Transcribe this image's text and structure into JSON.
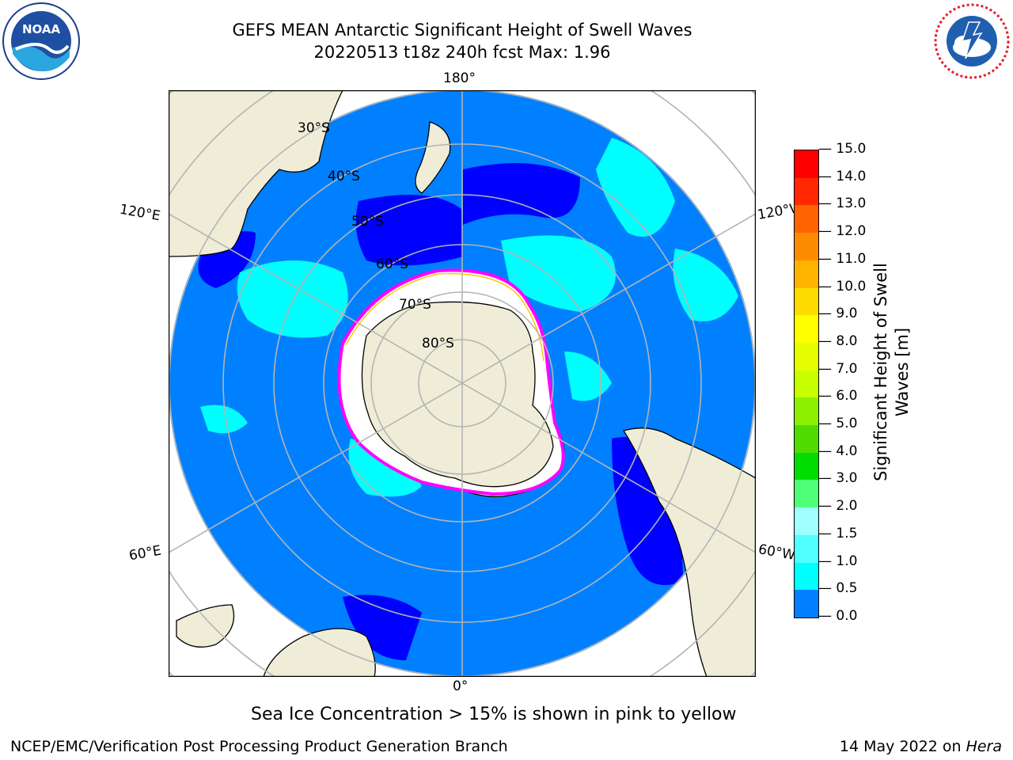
{
  "header": {
    "title_line1": "GEFS MEAN Antarctic Significant Height of Swell Waves",
    "title_line2": "20220513 t18z 240h fcst   Max: 1.96"
  },
  "logos": {
    "left": {
      "icon": "noaa-logo",
      "text": "NOAA",
      "ring_text": "NATIONAL OCEANIC AND ATMOSPHERIC ADMINISTRATION · U.S. DEPARTMENT OF COMMERCE"
    },
    "right": {
      "icon": "national-weather-service-logo",
      "ring_text": "NATIONAL WEATHER SERVICE"
    }
  },
  "map": {
    "projection": "south-polar-stereographic",
    "longitude_labels": {
      "top": "180°",
      "bottom": "0°",
      "upper_left": "120°E",
      "upper_right": "120°W",
      "lower_left": "60°E",
      "lower_right": "60°W"
    },
    "latitude_labels": [
      "30°S",
      "40°S",
      "50°S",
      "60°S",
      "70°S",
      "80°S"
    ],
    "colors": {
      "land": "#efedd8",
      "ocean_low": "#0080ff",
      "ocean_vlow": "#0000ff",
      "swell_mid": "#00ffff",
      "ice": "#ffffff",
      "ice_edge": "#ff00ff",
      "ice_edge2": "#ffc800",
      "grid": "#b4b4b4"
    }
  },
  "colorbar": {
    "label_line1": "Significant Height of Swell",
    "label_line2": "Waves [m]",
    "ticks": [
      "15.0",
      "14.0",
      "13.0",
      "12.0",
      "11.0",
      "10.0",
      "9.0",
      "8.0",
      "7.0",
      "6.0",
      "5.0",
      "4.0",
      "3.0",
      "2.0",
      "1.5",
      "1.0",
      "0.5",
      "0.0"
    ],
    "colors": [
      "#ff0000",
      "#ff2800",
      "#ff6400",
      "#ff8c00",
      "#ffb400",
      "#ffdc00",
      "#ffff00",
      "#e6ff00",
      "#c8ff00",
      "#8cf000",
      "#50dc00",
      "#00dc00",
      "#50ff78",
      "#a0ffff",
      "#50ffff",
      "#00ffff",
      "#0080ff",
      "#0000ff"
    ]
  },
  "note": "Sea Ice Concentration > 15% is shown in pink to yellow",
  "footer": {
    "left": "NCEP/EMC/Verification Post Processing Product Generation Branch",
    "right_date": "14 May 2022 on ",
    "right_host": "Hera"
  }
}
